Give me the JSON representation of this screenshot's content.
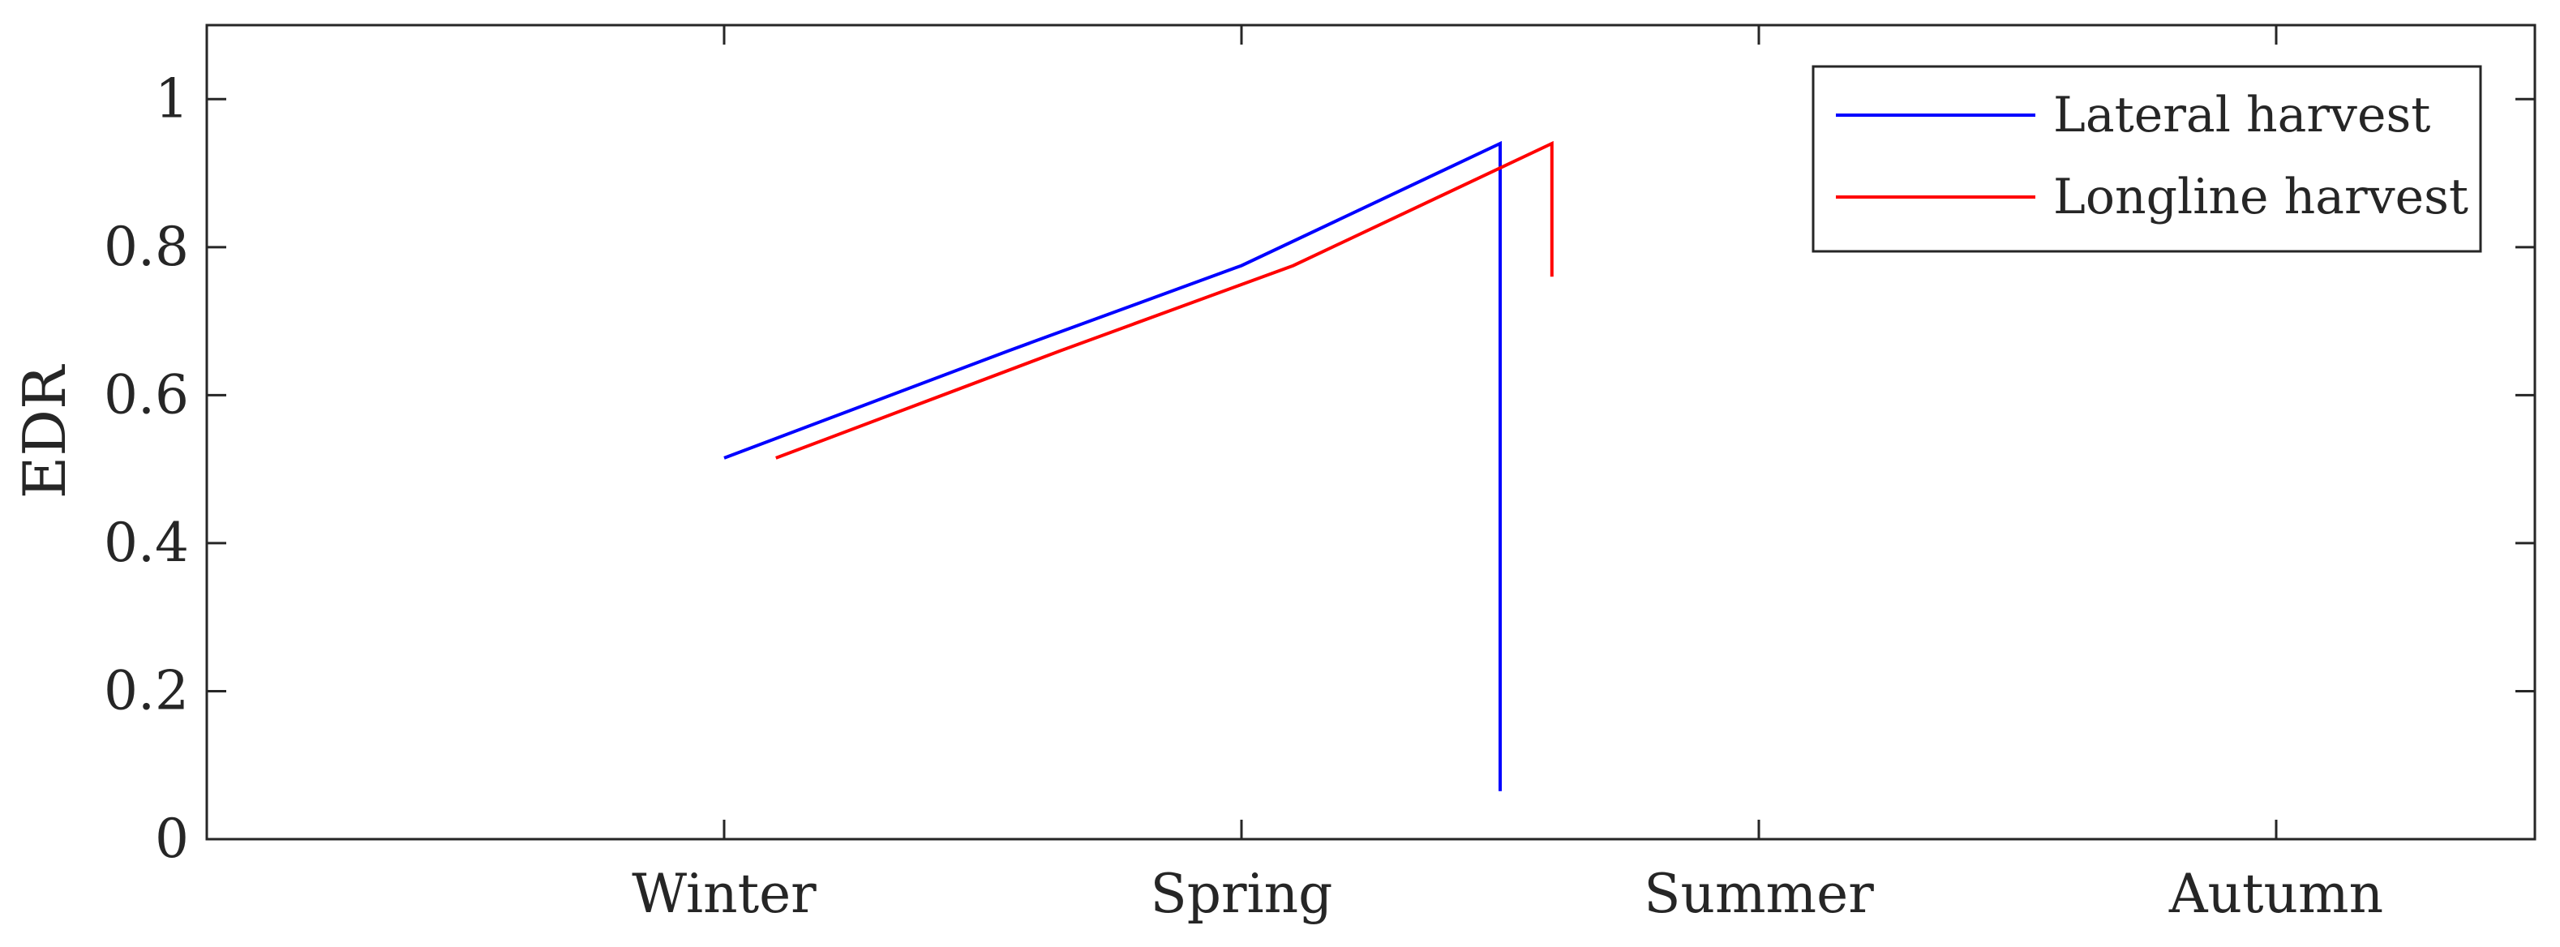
{
  "chart_data": {
    "type": "line",
    "title": "",
    "xlabel": "",
    "ylabel": "EDR",
    "xlim": [
      0,
      4.5
    ],
    "ylim": [
      0,
      1.1
    ],
    "x_ticks": [
      {
        "value": 1,
        "label": "Winter"
      },
      {
        "value": 2,
        "label": "Spring"
      },
      {
        "value": 3,
        "label": "Summer"
      },
      {
        "value": 4,
        "label": "Autumn"
      }
    ],
    "y_ticks": [
      {
        "value": 0,
        "label": "0"
      },
      {
        "value": 0.2,
        "label": "0.2"
      },
      {
        "value": 0.4,
        "label": "0.4"
      },
      {
        "value": 0.6,
        "label": "0.6"
      },
      {
        "value": 0.8,
        "label": "0.8"
      },
      {
        "value": 1,
        "label": "1"
      }
    ],
    "grid": false,
    "legend_position": "top-right",
    "series": [
      {
        "name": "Lateral harvest",
        "color": "#0000ff",
        "points": [
          [
            1.0,
            0.515
          ],
          [
            1.55,
            0.66
          ],
          [
            2.0,
            0.775
          ],
          [
            2.5,
            0.94
          ],
          [
            2.5,
            0.065
          ]
        ]
      },
      {
        "name": "Longline harvest",
        "color": "#ff0000",
        "points": [
          [
            1.1,
            0.515
          ],
          [
            1.65,
            0.66
          ],
          [
            2.1,
            0.775
          ],
          [
            2.6,
            0.94
          ],
          [
            2.6,
            0.76
          ]
        ]
      }
    ]
  }
}
